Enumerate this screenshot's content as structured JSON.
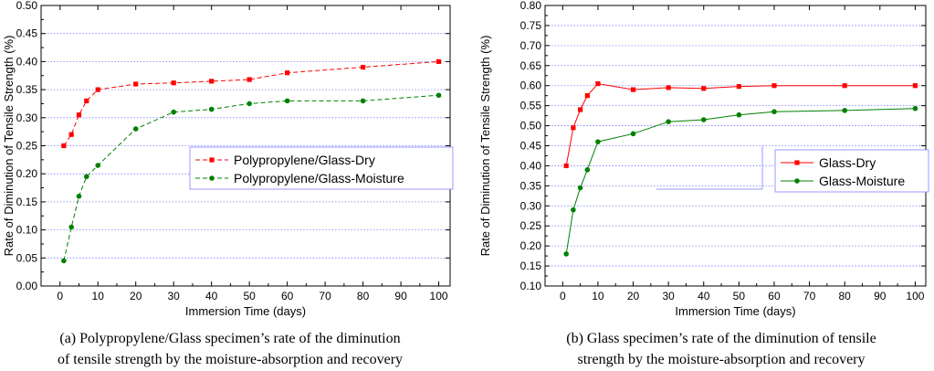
{
  "chart_data": [
    {
      "type": "line",
      "xlabel": "Immersion Time (days)",
      "ylabel": "Rate of Diminution of Tensile Strength (%)",
      "xlim": [
        -5,
        103
      ],
      "ylim": [
        0.0,
        0.5
      ],
      "xticks": [
        "0",
        "10",
        "20",
        "30",
        "40",
        "50",
        "60",
        "70",
        "80",
        "90",
        "100"
      ],
      "yticks": [
        "0.00",
        "0.05",
        "0.10",
        "0.15",
        "0.20",
        "0.25",
        "0.30",
        "0.35",
        "0.40",
        "0.45",
        "0.50"
      ],
      "grid": "horizontal-dotted",
      "legend_position": "center-right",
      "series": [
        {
          "name": "Polypropylene/Glass-Dry",
          "color": "#ff0000",
          "marker": "square",
          "line_style": "dashed",
          "x": [
            1,
            3,
            5,
            7,
            10,
            20,
            30,
            40,
            50,
            60,
            80,
            100
          ],
          "y": [
            0.25,
            0.27,
            0.305,
            0.33,
            0.35,
            0.36,
            0.362,
            0.365,
            0.368,
            0.38,
            0.39,
            0.4
          ]
        },
        {
          "name": "Polypropylene/Glass-Moisture",
          "color": "#008000",
          "marker": "circle",
          "line_style": "dashed",
          "x": [
            1,
            3,
            5,
            7,
            10,
            20,
            30,
            40,
            50,
            60,
            80,
            100
          ],
          "y": [
            0.045,
            0.105,
            0.16,
            0.195,
            0.215,
            0.28,
            0.31,
            0.315,
            0.325,
            0.33,
            0.33,
            0.34
          ]
        }
      ],
      "caption": [
        "(a) Polypropylene/Glass specimen’s rate of the diminution",
        "of tensile strength by the moisture-absorption and recovery"
      ]
    },
    {
      "type": "line",
      "xlabel": "Immersion Time (days)",
      "ylabel": "Rate of Diminution of Tensile Strength (%)",
      "xlim": [
        -5,
        103
      ],
      "ylim": [
        0.1,
        0.8
      ],
      "xticks": [
        "0",
        "10",
        "20",
        "30",
        "40",
        "50",
        "60",
        "70",
        "80",
        "90",
        "100"
      ],
      "yticks": [
        "0.10",
        "0.15",
        "0.20",
        "0.25",
        "0.30",
        "0.35",
        "0.40",
        "0.45",
        "0.50",
        "0.55",
        "0.60",
        "0.65",
        "0.70",
        "0.75",
        "0.80"
      ],
      "grid": "horizontal-dotted",
      "legend_position": "center-right",
      "series": [
        {
          "name": "Glass-Dry",
          "color": "#ff0000",
          "marker": "square",
          "line_style": "solid",
          "x": [
            1,
            3,
            5,
            7,
            10,
            20,
            30,
            40,
            50,
            60,
            80,
            100
          ],
          "y": [
            0.4,
            0.495,
            0.54,
            0.575,
            0.605,
            0.59,
            0.595,
            0.593,
            0.598,
            0.6,
            0.6,
            0.6
          ]
        },
        {
          "name": "Glass-Moisture",
          "color": "#008000",
          "marker": "circle",
          "line_style": "solid",
          "x": [
            1,
            3,
            5,
            7,
            10,
            20,
            30,
            40,
            50,
            60,
            80,
            100
          ],
          "y": [
            0.18,
            0.29,
            0.345,
            0.39,
            0.46,
            0.48,
            0.51,
            0.515,
            0.527,
            0.535,
            0.538,
            0.543
          ]
        }
      ],
      "caption": [
        "(b) Glass specimen’s rate of the diminution of tensile",
        "strength by the moisture-absorption and recovery"
      ]
    }
  ]
}
